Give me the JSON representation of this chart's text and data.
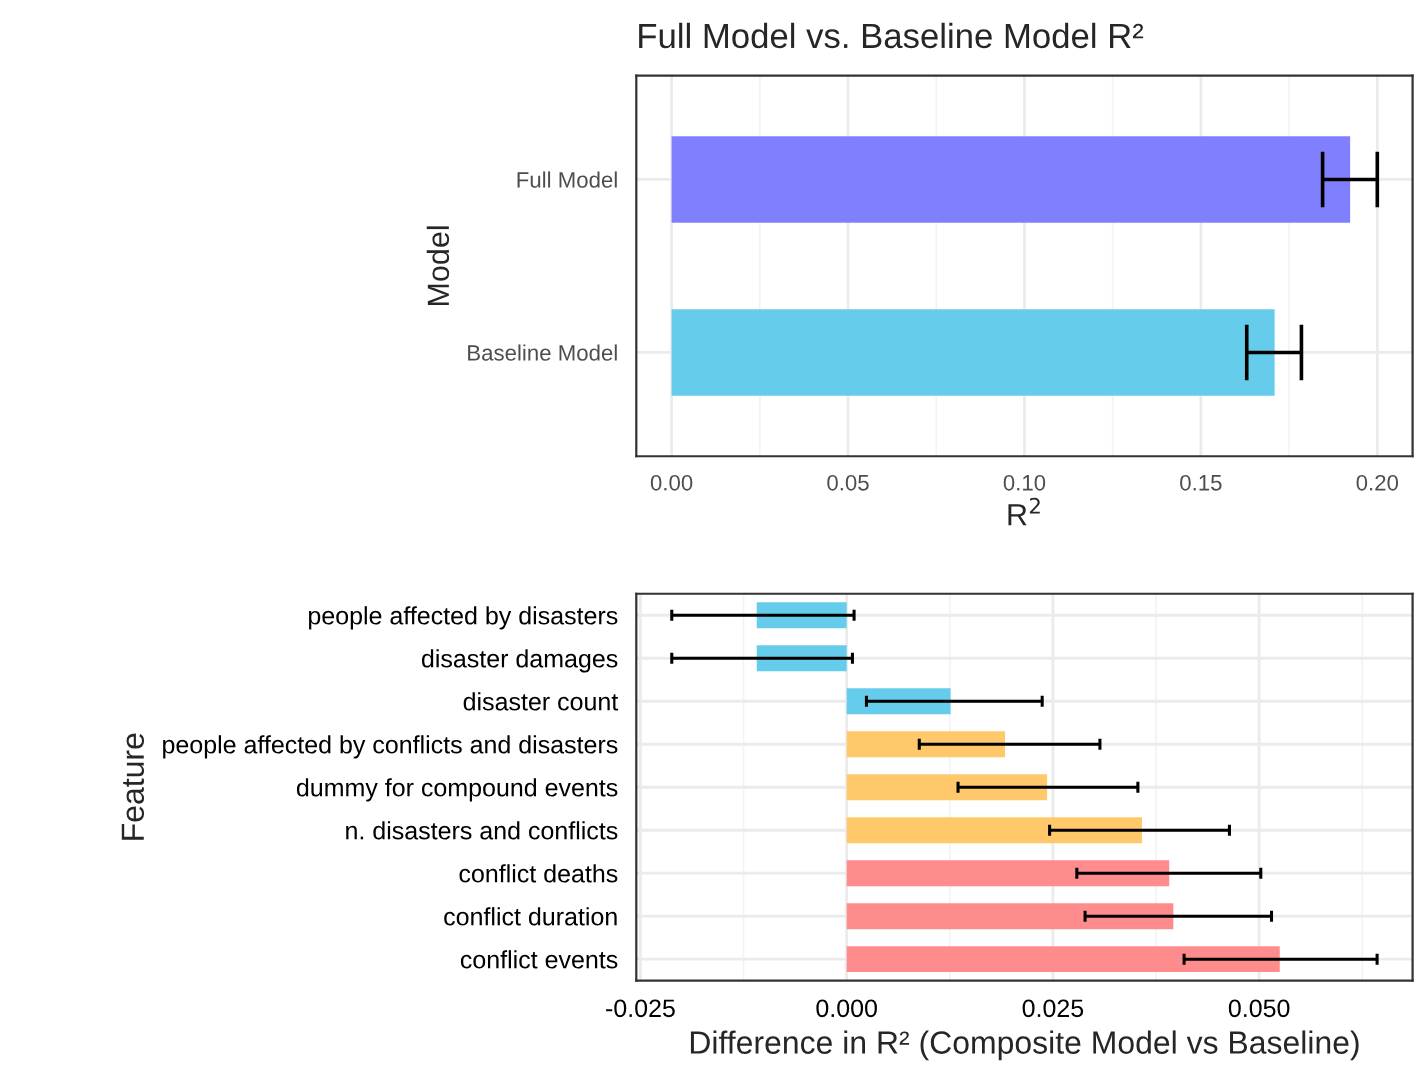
{
  "chart_data": [
    {
      "type": "bar",
      "orientation": "horizontal",
      "title": "Full Model vs. Baseline Model R²",
      "xlabel": "R$^{2}$",
      "ylabel": "Model",
      "categories": [
        "Full Model",
        "Baseline Model"
      ],
      "values": [
        0.1923,
        0.1709
      ],
      "colors": [
        "#8080ff",
        "#66cceb"
      ],
      "errors": [
        [
          0.1845,
          0.2
        ],
        [
          0.163,
          0.1785
        ]
      ],
      "xlim": [
        -0.01,
        0.21
      ],
      "xticks": [
        {
          "value": 0,
          "label": "0.00"
        },
        {
          "value": 0.05,
          "label": "0.05"
        },
        {
          "value": 0.1,
          "label": "0.10"
        },
        {
          "value": 0.15,
          "label": "0.15"
        },
        {
          "value": 0.2,
          "label": "0.20"
        }
      ],
      "grid": true,
      "legend": false
    },
    {
      "type": "bar",
      "orientation": "horizontal",
      "xlabel": "Difference in R² (Composite Model vs Baseline)",
      "ylabel": "Feature",
      "categories": [
        "people affected by disasters",
        "disaster damages",
        "disaster count",
        "people affected by conflicts and disasters",
        "dummy for compound events",
        "n. disasters and conflicts",
        "conflict deaths",
        "conflict duration",
        "conflict events"
      ],
      "values": [
        -0.0109,
        -0.0109,
        0.0126,
        0.0192,
        0.0243,
        0.0358,
        0.0391,
        0.0396,
        0.0525
      ],
      "colors": [
        "#66cceb",
        "#66cceb",
        "#66cceb",
        "#ffc96b",
        "#ffc96b",
        "#ffc96b",
        "#ff8c8c",
        "#ff8c8c",
        "#ff8c8c"
      ],
      "errors": [
        [
          -0.0212,
          0.0009
        ],
        [
          -0.0212,
          0.0007
        ],
        [
          0.0024,
          0.0237
        ],
        [
          0.0088,
          0.0307
        ],
        [
          0.0135,
          0.0353
        ],
        [
          0.0246,
          0.0464
        ],
        [
          0.0279,
          0.0502
        ],
        [
          0.0289,
          0.0515
        ],
        [
          0.0409,
          0.0643
        ]
      ],
      "xlim": [
        -0.0255,
        0.0686
      ],
      "xticks": [
        {
          "value": -0.025,
          "label": "-0.025"
        },
        {
          "value": 0,
          "label": "0.000"
        },
        {
          "value": 0.025,
          "label": "0.025"
        },
        {
          "value": 0.05,
          "label": "0.050"
        }
      ],
      "grid": true,
      "legend": false
    }
  ]
}
